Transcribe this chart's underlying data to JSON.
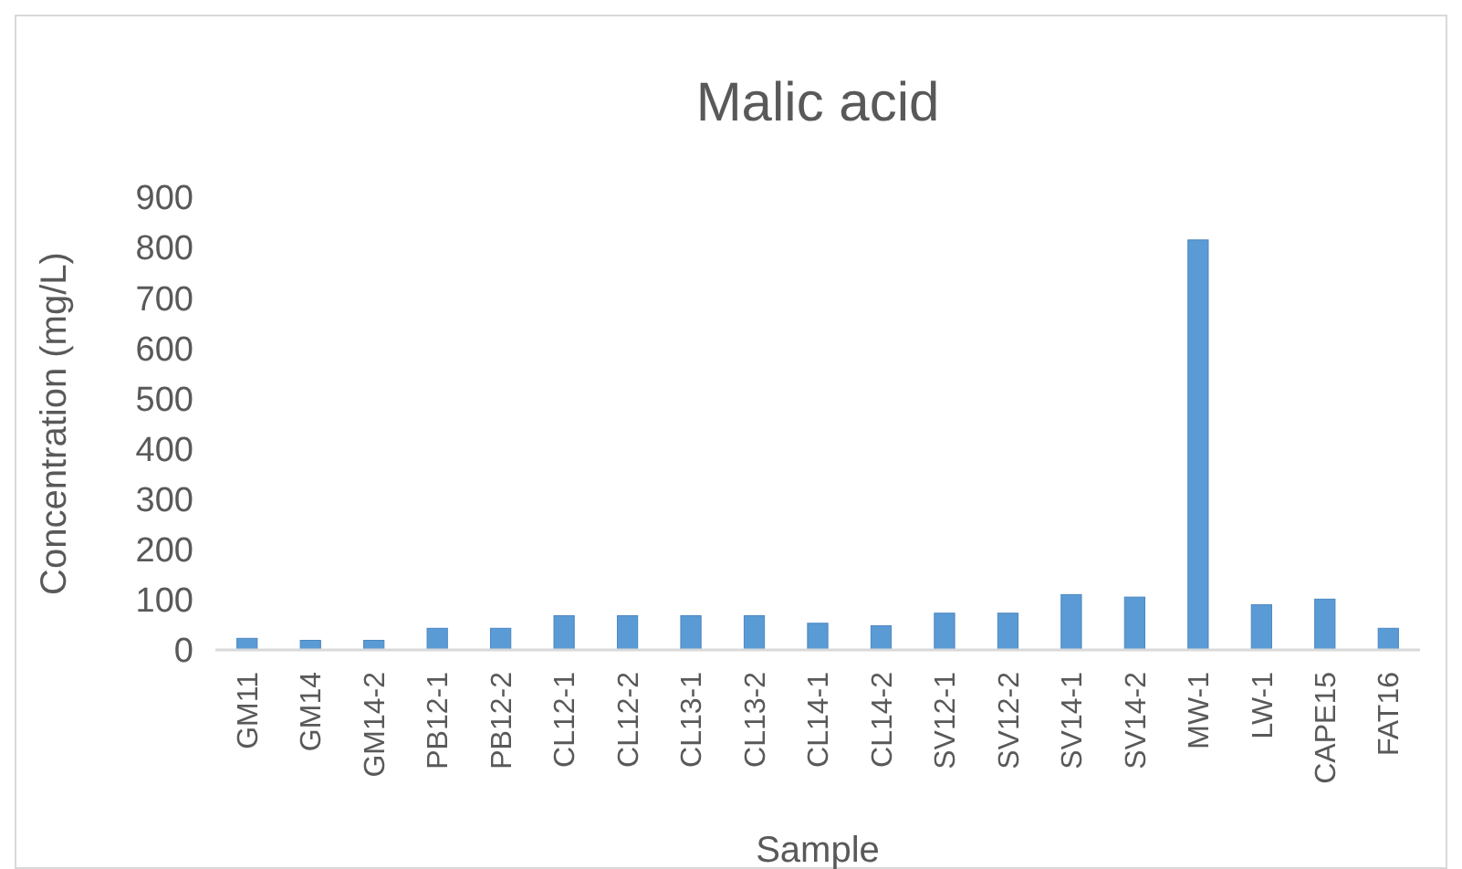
{
  "chart_data": {
    "type": "bar",
    "title": "Malic acid",
    "xlabel": "Sample",
    "ylabel": "Concentration (mg/L)",
    "categories": [
      "GM11",
      "GM14",
      "GM14-2",
      "PB12-1",
      "PB12-2",
      "CL12-1",
      "CL12-2",
      "CL13-1",
      "CL13-2",
      "CL14-1",
      "CL14-2",
      "SV12-1",
      "SV12-2",
      "SV14-1",
      "SV14-2",
      "MW-1",
      "LW-1",
      "CAPE15",
      "FAT16"
    ],
    "values": [
      23,
      19,
      19,
      43,
      43,
      68,
      68,
      68,
      68,
      53,
      48,
      73,
      73,
      110,
      105,
      815,
      90,
      101,
      43
    ],
    "color": "#5b9bd5",
    "ylim": [
      0,
      900
    ],
    "yticks": [
      0,
      100,
      200,
      300,
      400,
      500,
      600,
      700,
      800,
      900
    ],
    "grid": false
  }
}
